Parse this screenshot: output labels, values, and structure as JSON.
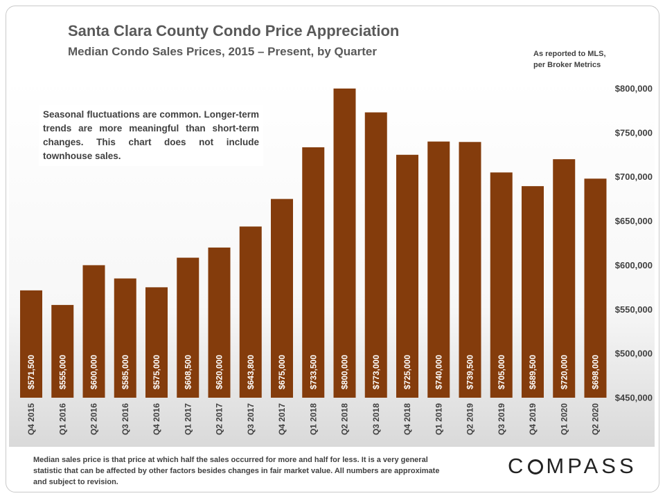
{
  "title": "Santa Clara County Condo Price Appreciation",
  "subtitle": "Median Condo Sales Prices, 2015 – Present, by Quarter",
  "source_note": [
    "As reported to MLS,",
    "per Broker Metrics"
  ],
  "annotation": "Seasonal fluctuations are common. Longer-term trends are more meaningful than short-term changes. This chart does not include townhouse sales.",
  "footnote": "Median sales price is that price at which half the sales occurred for more and half for less. It is a very general statistic that can be affected by other factors besides changes in fair market value. All numbers are approximate and subject to revision.",
  "brand": {
    "pre": "C",
    "post": "MPASS"
  },
  "colors": {
    "bar": "#843C0C",
    "bar_label": "#ffffff",
    "axis_text": "#404040",
    "plot_bg_top": "#ffffff",
    "plot_bg_bottom": "#d9d9d9"
  },
  "chart_data": {
    "type": "bar",
    "categories": [
      "Q4 2015",
      "Q1 2016",
      "Q2 2016",
      "Q3 2016",
      "Q4 2016",
      "Q1 2017",
      "Q2 2017",
      "Q3 2017",
      "Q4 2017",
      "Q1 2018",
      "Q2 2018",
      "Q3 2018",
      "Q4 2018",
      "Q1 2019",
      "Q2 2019",
      "Q3 2019",
      "Q4 2019",
      "Q1 2020",
      "Q2 2020"
    ],
    "values": [
      571500,
      555000,
      600000,
      585000,
      575000,
      608500,
      620000,
      643800,
      675000,
      733500,
      800000,
      773000,
      725000,
      740000,
      739500,
      705000,
      689500,
      720000,
      698000
    ],
    "value_labels": [
      "$571,500",
      "$555,000",
      "$600,000",
      "$585,000",
      "$575,000",
      "$608,500",
      "$620,000",
      "$643,800",
      "$675,000",
      "$733,500",
      "$800,000",
      "$773,000",
      "$725,000",
      "$740,000",
      "$739,500",
      "$705,000",
      "$689,500",
      "$720,000",
      "$698,000"
    ],
    "ylim": [
      450000,
      800000
    ],
    "yticks": [
      450000,
      500000,
      550000,
      600000,
      650000,
      700000,
      750000,
      800000
    ],
    "ytick_labels": [
      "$450,000",
      "$500,000",
      "$550,000",
      "$600,000",
      "$650,000",
      "$700,000",
      "$750,000",
      "$800,000"
    ],
    "axis_side": "right",
    "grid": false
  }
}
